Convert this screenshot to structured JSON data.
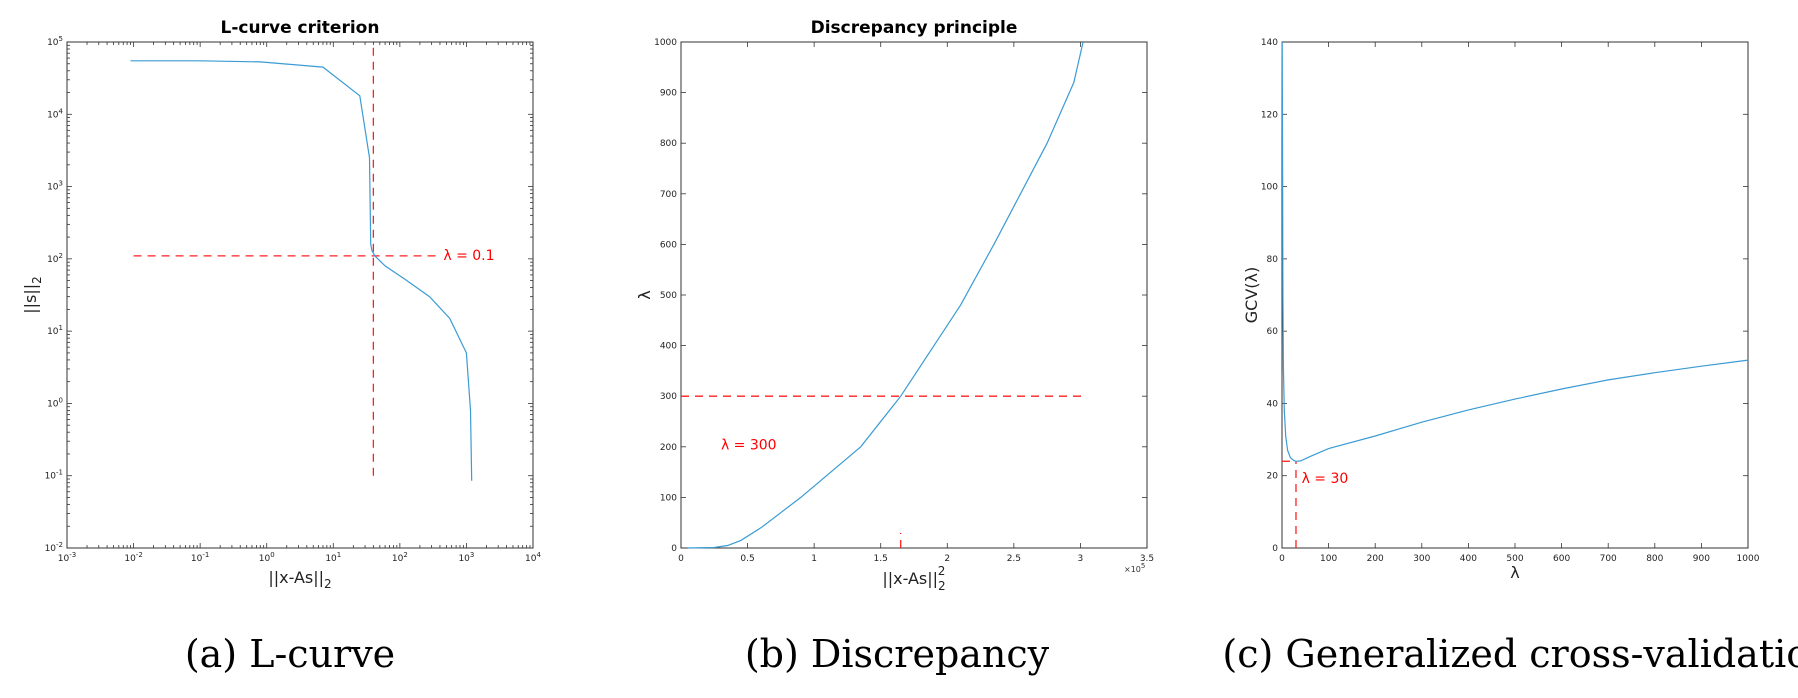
{
  "chart_data": [
    {
      "id": "a",
      "type": "line",
      "title": "L-curve criterion",
      "xlabel": "||x-As||",
      "xlabel_sub": "2",
      "ylabel": "||s||",
      "ylabel_sub": "2",
      "xscale": "log",
      "yscale": "log",
      "xlim": [
        0.001,
        10000
      ],
      "ylim": [
        0.01,
        100000
      ],
      "x_ticks": [
        0.001,
        0.01,
        0.1,
        1,
        10,
        100,
        1000,
        10000
      ],
      "x_tick_labels": [
        {
          "base": "10",
          "exp": "-3"
        },
        {
          "base": "10",
          "exp": "-2"
        },
        {
          "base": "10",
          "exp": "-1"
        },
        {
          "base": "10",
          "exp": "0"
        },
        {
          "base": "10",
          "exp": "1"
        },
        {
          "base": "10",
          "exp": "2"
        },
        {
          "base": "10",
          "exp": "3"
        },
        {
          "base": "10",
          "exp": "4"
        }
      ],
      "y_ticks": [
        0.01,
        0.1,
        1,
        10,
        100,
        1000,
        10000,
        100000
      ],
      "y_tick_labels": [
        {
          "base": "10",
          "exp": "-2"
        },
        {
          "base": "10",
          "exp": "-1"
        },
        {
          "base": "10",
          "exp": "0"
        },
        {
          "base": "10",
          "exp": "1"
        },
        {
          "base": "10",
          "exp": "2"
        },
        {
          "base": "10",
          "exp": "3"
        },
        {
          "base": "10",
          "exp": "4"
        },
        {
          "base": "10",
          "exp": "5"
        }
      ],
      "series": [
        {
          "x": [
            0.009,
            0.1,
            0.8,
            7,
            25,
            35,
            36,
            36.5,
            38,
            42,
            60,
            120,
            280,
            560,
            1000,
            1150,
            1200
          ],
          "y": [
            55000,
            55000,
            53000,
            45000,
            18000,
            2500,
            400,
            160,
            130,
            110,
            80,
            52,
            30,
            15,
            5,
            0.8,
            0.085
          ]
        }
      ],
      "dashed_lines": [
        {
          "orientation": "horizontal",
          "y": 110,
          "x_from": 0.01,
          "x_to": 400
        },
        {
          "orientation": "vertical",
          "x": 40,
          "y_from": 0.1,
          "y_to": 100000
        }
      ],
      "annotation": {
        "text": "λ = 0.1",
        "x": 450,
        "y": 96
      },
      "caption": "(a) L-curve"
    },
    {
      "id": "b",
      "type": "line",
      "title": "Discrepancy principle",
      "xlabel": "||x-As||",
      "xlabel_sub": "2",
      "xlabel_sup": "2",
      "ylabel": "λ",
      "xscale": "linear",
      "yscale": "linear",
      "xlim": [
        0,
        3.5
      ],
      "ylim": [
        0,
        1000
      ],
      "x_ticks": [
        0,
        0.5,
        1,
        1.5,
        2,
        2.5,
        3,
        3.5
      ],
      "x_tick_labels": [
        "0",
        "0.5",
        "1",
        "1.5",
        "2",
        "2.5",
        "3",
        "3.5"
      ],
      "x_multiplier": {
        "base": "×10",
        "exp": "5"
      },
      "y_ticks": [
        0,
        100,
        200,
        300,
        400,
        500,
        600,
        700,
        800,
        900,
        1000
      ],
      "y_tick_labels": [
        "0",
        "100",
        "200",
        "300",
        "400",
        "500",
        "600",
        "700",
        "800",
        "900",
        "1000"
      ],
      "series": [
        {
          "x": [
            0.05,
            0.25,
            0.35,
            0.45,
            0.6,
            0.9,
            1.35,
            1.65,
            1.9,
            2.1,
            2.35,
            2.55,
            2.75,
            2.95,
            3.02
          ],
          "y": [
            0,
            1,
            5,
            15,
            40,
            100,
            200,
            300,
            400,
            480,
            600,
            700,
            800,
            920,
            1000
          ]
        }
      ],
      "dashed_lines": [
        {
          "orientation": "horizontal",
          "y": 300,
          "x_from": 0,
          "x_to": 3.02
        },
        {
          "orientation": "vertical",
          "x": 1.65,
          "y_from": 0,
          "y_to": 30
        }
      ],
      "annotation": {
        "text": "λ = 300",
        "x": 0.3,
        "y": 195
      },
      "caption": "(b) Discrepancy"
    },
    {
      "id": "c",
      "type": "line",
      "title": "",
      "xlabel": "λ",
      "ylabel": "GCV(λ)",
      "xscale": "linear",
      "yscale": "linear",
      "xlim": [
        0,
        1000
      ],
      "ylim": [
        0,
        140
      ],
      "x_ticks": [
        0,
        100,
        200,
        300,
        400,
        500,
        600,
        700,
        800,
        900,
        1000
      ],
      "x_tick_labels": [
        "0",
        "100",
        "200",
        "300",
        "400",
        "500",
        "600",
        "700",
        "800",
        "900",
        "1000"
      ],
      "y_ticks": [
        0,
        20,
        40,
        60,
        80,
        100,
        120,
        140
      ],
      "y_tick_labels": [
        "0",
        "20",
        "40",
        "60",
        "80",
        "100",
        "120",
        "140"
      ],
      "series": [
        {
          "x": [
            0.5,
            1,
            2,
            3,
            5,
            8,
            12,
            18,
            25,
            30,
            40,
            60,
            100,
            200,
            300,
            400,
            500,
            600,
            700,
            800,
            900,
            1000
          ],
          "y": [
            140,
            115,
            70,
            50,
            38,
            31,
            27,
            25,
            24.2,
            24,
            24.1,
            25.3,
            27.5,
            31,
            34.8,
            38.2,
            41.2,
            44,
            46.5,
            48.5,
            50.3,
            52
          ]
        }
      ],
      "dashed_lines": [
        {
          "orientation": "horizontal",
          "y": 24,
          "x_from": 0,
          "x_to": 30
        },
        {
          "orientation": "vertical",
          "x": 30,
          "y_from": 0,
          "y_to": 24
        }
      ],
      "annotation": {
        "text": "λ = 30",
        "x": 42,
        "y": 18
      },
      "caption": "(c) Generalized cross-validation"
    }
  ],
  "colors": {
    "curve": "#3b9bd4",
    "dashed": "#ff2020",
    "annotation": "#ff0000",
    "frame": "#333333"
  }
}
